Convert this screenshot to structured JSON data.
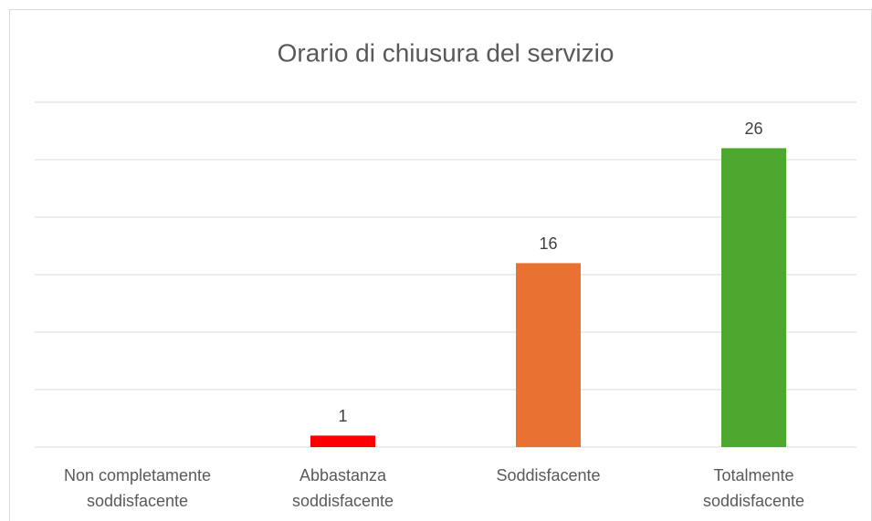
{
  "chart_data": {
    "type": "bar",
    "title": "Orario di chiusura del servizio",
    "categories": [
      "Non completamente soddisfacente",
      "Abbastanza soddisfacente",
      "Soddisfacente",
      "Totalmente soddisfacente"
    ],
    "values": [
      null,
      1,
      16,
      26
    ],
    "colors": [
      "#ff0000",
      "#ff0000",
      "#e97132",
      "#4ea72e"
    ],
    "ylim": [
      0,
      30
    ],
    "yticks": [
      0,
      5,
      10,
      15,
      20,
      25,
      30
    ],
    "grid": true
  }
}
